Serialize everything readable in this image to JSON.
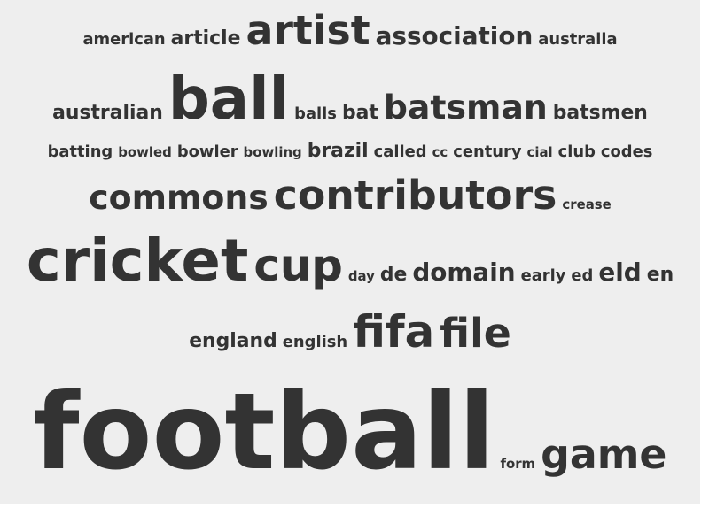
{
  "colors": {
    "background": "#eeeeee",
    "text": "#333333"
  },
  "rows": [
    {
      "words": [
        {
          "text": "american",
          "weight": 1
        },
        {
          "text": "article",
          "weight": 2
        },
        {
          "text": "artist",
          "weight": 5
        },
        {
          "text": "association",
          "weight": 3
        },
        {
          "text": "australia",
          "weight": 1
        }
      ]
    },
    {
      "words": [
        {
          "text": "australian",
          "weight": 2
        },
        {
          "text": "ball",
          "weight": 7
        },
        {
          "text": "balls",
          "weight": 1
        },
        {
          "text": "bat",
          "weight": 2
        },
        {
          "text": "batsman",
          "weight": 4
        },
        {
          "text": "batsmen",
          "weight": 2
        }
      ]
    },
    {
      "words": [
        {
          "text": "batting",
          "weight": 1
        },
        {
          "text": "bowled",
          "weight": 0
        },
        {
          "text": "bowler",
          "weight": 1
        },
        {
          "text": "bowling",
          "weight": 0
        },
        {
          "text": "brazil",
          "weight": 2
        },
        {
          "text": "called",
          "weight": 1
        },
        {
          "text": "cc",
          "weight": 0
        },
        {
          "text": "century",
          "weight": 1
        },
        {
          "text": "cial",
          "weight": 0
        },
        {
          "text": "club",
          "weight": 1
        },
        {
          "text": "codes",
          "weight": 1
        }
      ]
    },
    {
      "words": [
        {
          "text": "commons",
          "weight": 4
        },
        {
          "text": "contributors",
          "weight": 5
        },
        {
          "text": "crease",
          "weight": 0
        }
      ]
    },
    {
      "words": [
        {
          "text": "cricket",
          "weight": 7
        },
        {
          "text": "cup",
          "weight": 6
        },
        {
          "text": "day",
          "weight": 0
        },
        {
          "text": "de",
          "weight": 2
        },
        {
          "text": "domain",
          "weight": 3
        },
        {
          "text": "early",
          "weight": 1
        },
        {
          "text": "ed",
          "weight": 1
        },
        {
          "text": "eld",
          "weight": 3
        },
        {
          "text": "en",
          "weight": 2
        }
      ]
    },
    {
      "words": [
        {
          "text": "england",
          "weight": 2
        },
        {
          "text": "english",
          "weight": 1
        },
        {
          "text": "fifa",
          "weight": 6
        },
        {
          "text": "file",
          "weight": 5
        }
      ]
    },
    {
      "words": [
        {
          "text": "football",
          "weight": 9
        },
        {
          "text": "form",
          "weight": 0
        },
        {
          "text": "game",
          "weight": 5
        }
      ]
    }
  ]
}
